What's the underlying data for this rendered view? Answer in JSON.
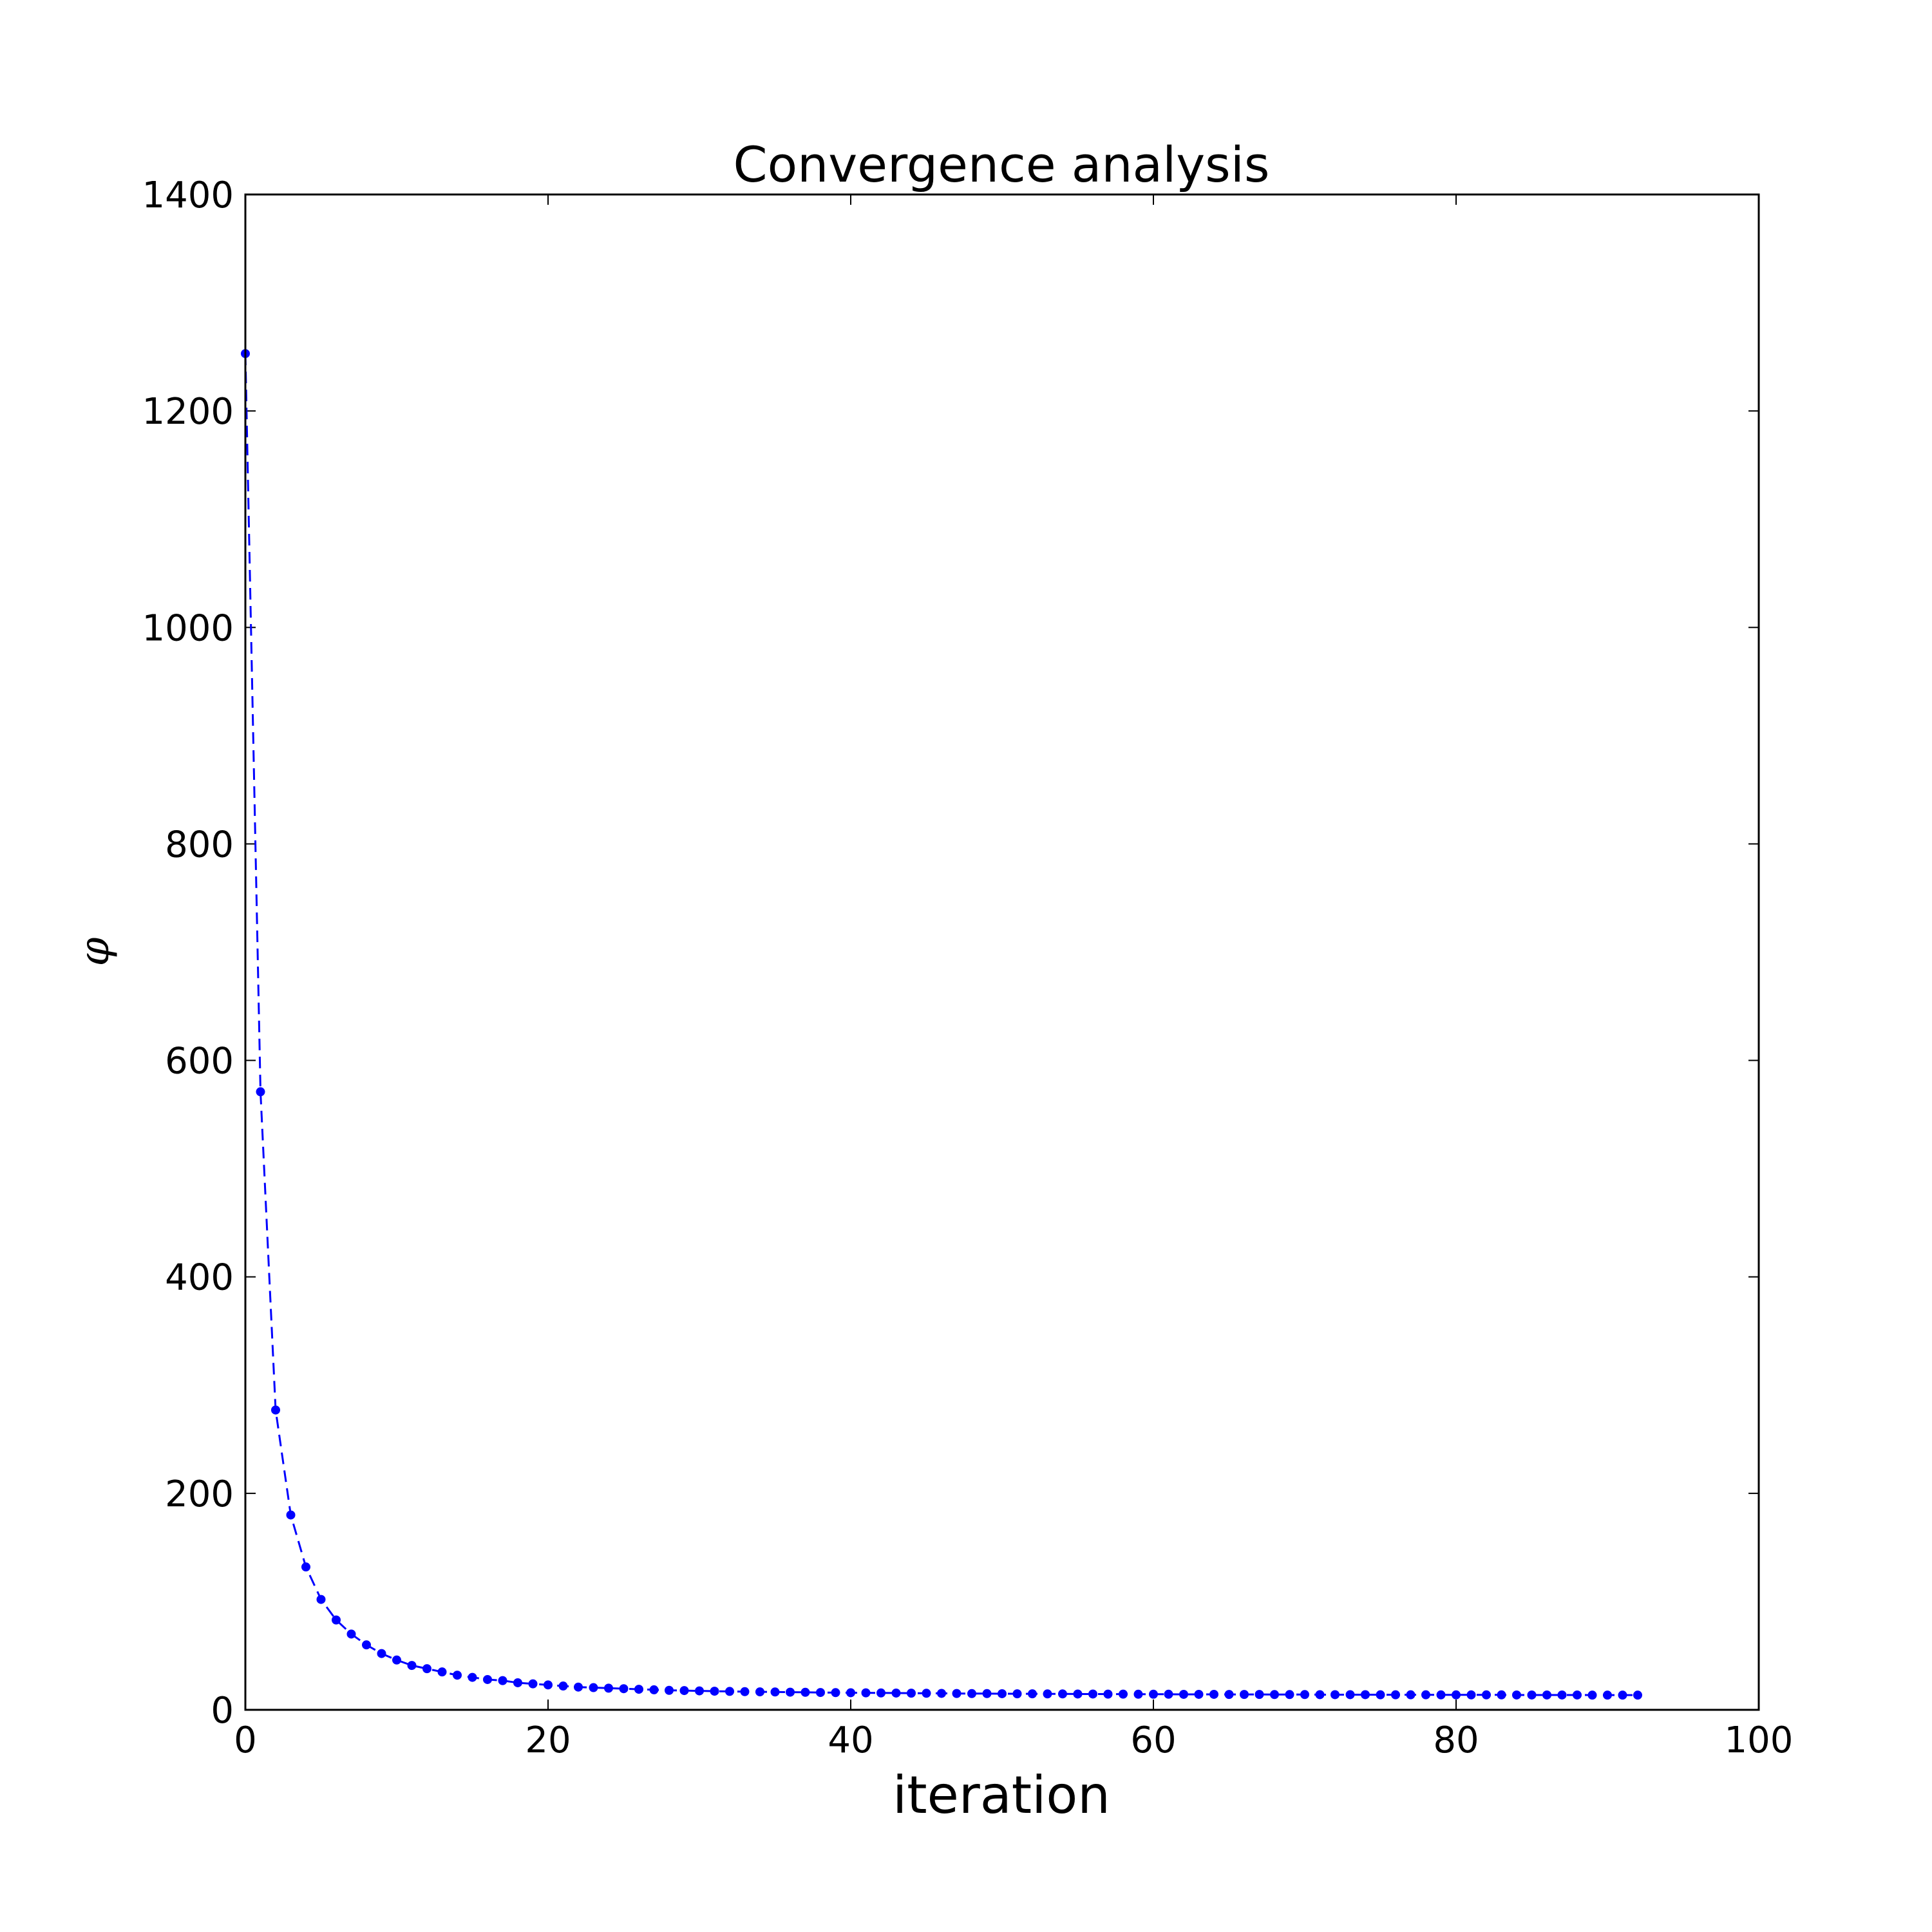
{
  "chart_data": {
    "type": "line",
    "title": "Convergence analysis",
    "xlabel": "iteration",
    "ylabel": "φ",
    "xlim": [
      0,
      100
    ],
    "ylim": [
      0,
      1400
    ],
    "xticks": [
      "0",
      "20",
      "40",
      "60",
      "80",
      "100"
    ],
    "yticks": [
      "0",
      "200",
      "400",
      "600",
      "800",
      "1000",
      "1200",
      "1400"
    ],
    "grid": false,
    "legend": "none",
    "line_style": "dashed",
    "marker": "circle",
    "color": "#0000ff",
    "series": [
      {
        "x": [
          0,
          1,
          2,
          3,
          4,
          5,
          6,
          7,
          8,
          9,
          10,
          11,
          12,
          13,
          14,
          15,
          16,
          17,
          18,
          19,
          20,
          21,
          22,
          23,
          24,
          25,
          26,
          27,
          28,
          29,
          30,
          31,
          32,
          33,
          34,
          35,
          36,
          37,
          38,
          39,
          40,
          41,
          42,
          43,
          44,
          45,
          46,
          47,
          48,
          49,
          50,
          51,
          52,
          53,
          54,
          55,
          56,
          57,
          58,
          59,
          60,
          61,
          62,
          63,
          64,
          65,
          66,
          67,
          68,
          69,
          70,
          71,
          72,
          73,
          74,
          75,
          76,
          77,
          78,
          79,
          80,
          81,
          82,
          83,
          84,
          85,
          86,
          87,
          88,
          89,
          90,
          91,
          92
        ],
        "values": [
          1253,
          571,
          277,
          180,
          132,
          102,
          83,
          70,
          60,
          52,
          46,
          41,
          38,
          35,
          32,
          30,
          28,
          27,
          25,
          24,
          23,
          22,
          21,
          20.5,
          20,
          19.5,
          19,
          18.5,
          18,
          17.8,
          17.5,
          17.2,
          17,
          16.8,
          16.6,
          16.5,
          16.3,
          16.2,
          16,
          15.9,
          15.8,
          15.7,
          15.6,
          15.5,
          15.4,
          15.3,
          15.2,
          15.1,
          15,
          15,
          14.9,
          14.8,
          14.8,
          14.7,
          14.7,
          14.6,
          14.6,
          14.5,
          14.5,
          14.4,
          14.4,
          14.4,
          14.3,
          14.3,
          14.3,
          14.2,
          14.2,
          14.2,
          14.1,
          14.1,
          14.1,
          14,
          14,
          14,
          14,
          13.9,
          13.9,
          13.9,
          13.9,
          13.8,
          13.8,
          13.8,
          13.8,
          13.8,
          13.7,
          13.7,
          13.7,
          13.7,
          13.7,
          13.6,
          13.6,
          13.6,
          13.6
        ]
      }
    ]
  }
}
